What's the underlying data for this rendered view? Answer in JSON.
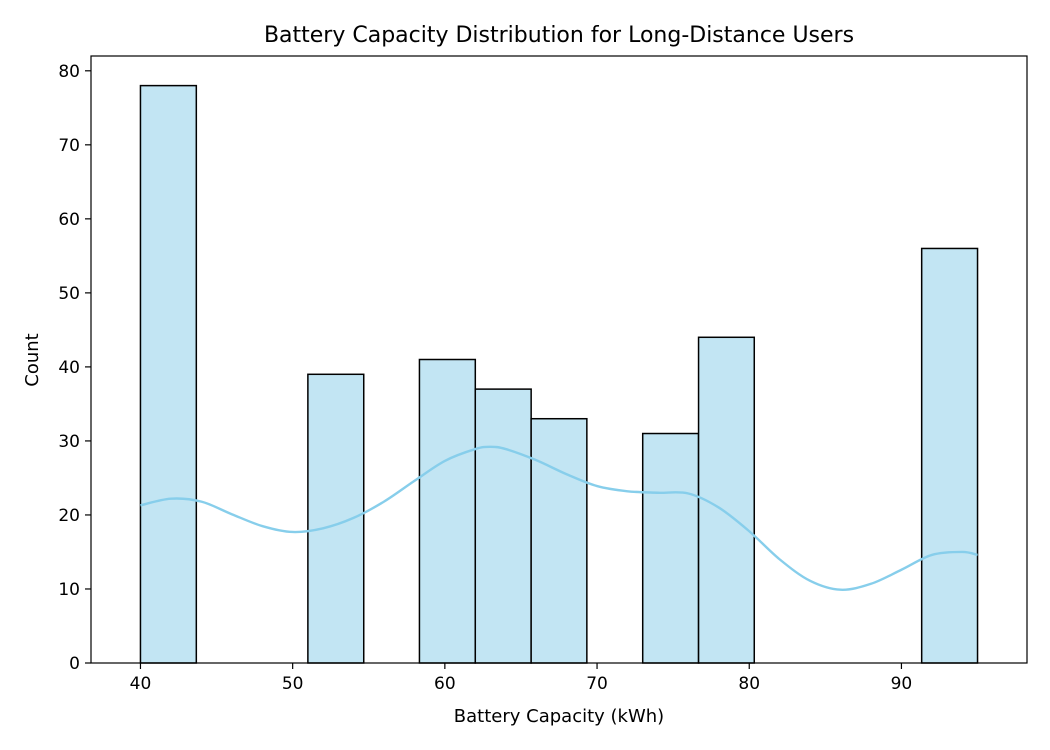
{
  "chart_data": {
    "type": "bar",
    "title": "Battery Capacity Distribution for Long-Distance Users",
    "xlabel": "Battery Capacity (kWh)",
    "ylabel": "Count",
    "xlim": [
      36.75,
      98.25
    ],
    "ylim": [
      0,
      82
    ],
    "x_ticks": [
      40,
      50,
      60,
      70,
      80,
      90
    ],
    "y_ticks": [
      0,
      10,
      20,
      30,
      40,
      50,
      60,
      70,
      80
    ],
    "grid": false,
    "legend": "none",
    "bins": [
      {
        "x0": 40.0,
        "x1": 43.67,
        "count": 78
      },
      {
        "x0": 43.67,
        "x1": 47.33,
        "count": 0
      },
      {
        "x0": 47.33,
        "x1": 51.0,
        "count": 0
      },
      {
        "x0": 51.0,
        "x1": 54.67,
        "count": 39
      },
      {
        "x0": 54.67,
        "x1": 58.33,
        "count": 0
      },
      {
        "x0": 58.33,
        "x1": 62.0,
        "count": 41
      },
      {
        "x0": 62.0,
        "x1": 65.67,
        "count": 37
      },
      {
        "x0": 65.67,
        "x1": 69.33,
        "count": 33
      },
      {
        "x0": 69.33,
        "x1": 73.0,
        "count": 0
      },
      {
        "x0": 73.0,
        "x1": 76.67,
        "count": 31
      },
      {
        "x0": 76.67,
        "x1": 80.33,
        "count": 44
      },
      {
        "x0": 80.33,
        "x1": 84.0,
        "count": 0
      },
      {
        "x0": 84.0,
        "x1": 87.67,
        "count": 0
      },
      {
        "x0": 87.67,
        "x1": 91.33,
        "count": 0
      },
      {
        "x0": 91.33,
        "x1": 95.0,
        "count": 56
      }
    ],
    "kde": {
      "x": [
        40,
        42,
        44,
        46,
        48,
        50,
        52,
        54,
        56,
        58,
        60,
        62,
        63,
        64,
        66,
        68,
        70,
        72,
        74,
        76,
        78,
        80,
        82,
        84,
        86,
        88,
        90,
        92,
        94,
        95
      ],
      "y": [
        21.3,
        22.2,
        21.8,
        20.1,
        18.5,
        17.7,
        18.2,
        19.6,
        21.8,
        24.6,
        27.3,
        28.9,
        29.2,
        28.9,
        27.4,
        25.5,
        23.9,
        23.2,
        23.0,
        22.9,
        21.0,
        17.8,
        14.0,
        11.1,
        9.9,
        10.7,
        12.6,
        14.6,
        15.0,
        14.6
      ]
    },
    "colors": {
      "bar_fill": "#c2e5f3",
      "bar_edge": "#000000",
      "kde_line": "#87ceeb",
      "axis": "#000000"
    }
  }
}
